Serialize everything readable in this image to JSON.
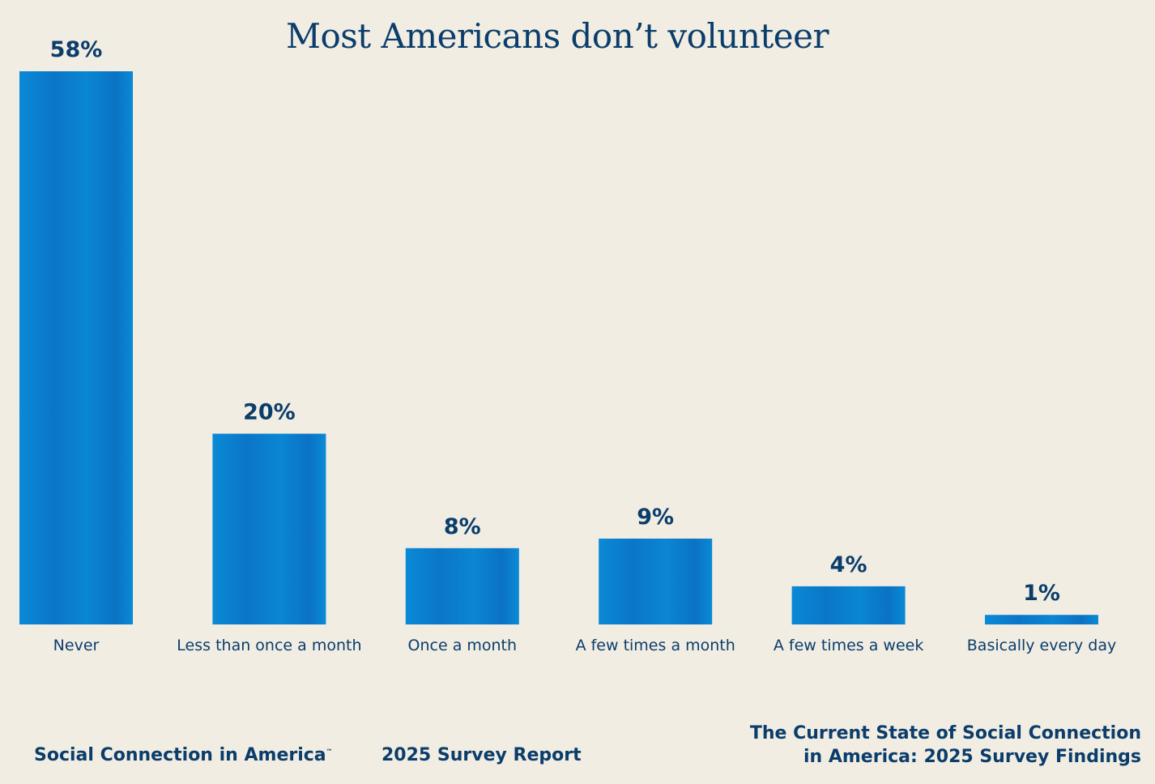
{
  "chart_data": {
    "type": "bar",
    "title": "Most Americans don’t volunteer",
    "categories": [
      "Never",
      "Less than once a month",
      "Once a month",
      "A few times a month",
      "A few times a week",
      "Basically every day"
    ],
    "values": [
      58,
      20,
      8,
      9,
      4,
      1
    ],
    "value_labels": [
      "58%",
      "20%",
      "8%",
      "9%",
      "4%",
      "1%"
    ],
    "xlabel": "",
    "ylabel": "",
    "ylim": [
      0,
      58
    ],
    "grid": false,
    "bar_color": "#0a8ad6",
    "bar_shadow_color": "#0b6fc0"
  },
  "footer": {
    "brand": "Social Connection in America",
    "trademark": "™",
    "report": "2025 Survey Report",
    "subtitle_line1": "The Current State of Social Connection",
    "subtitle_line2": "in America: 2025 Survey Findings"
  }
}
